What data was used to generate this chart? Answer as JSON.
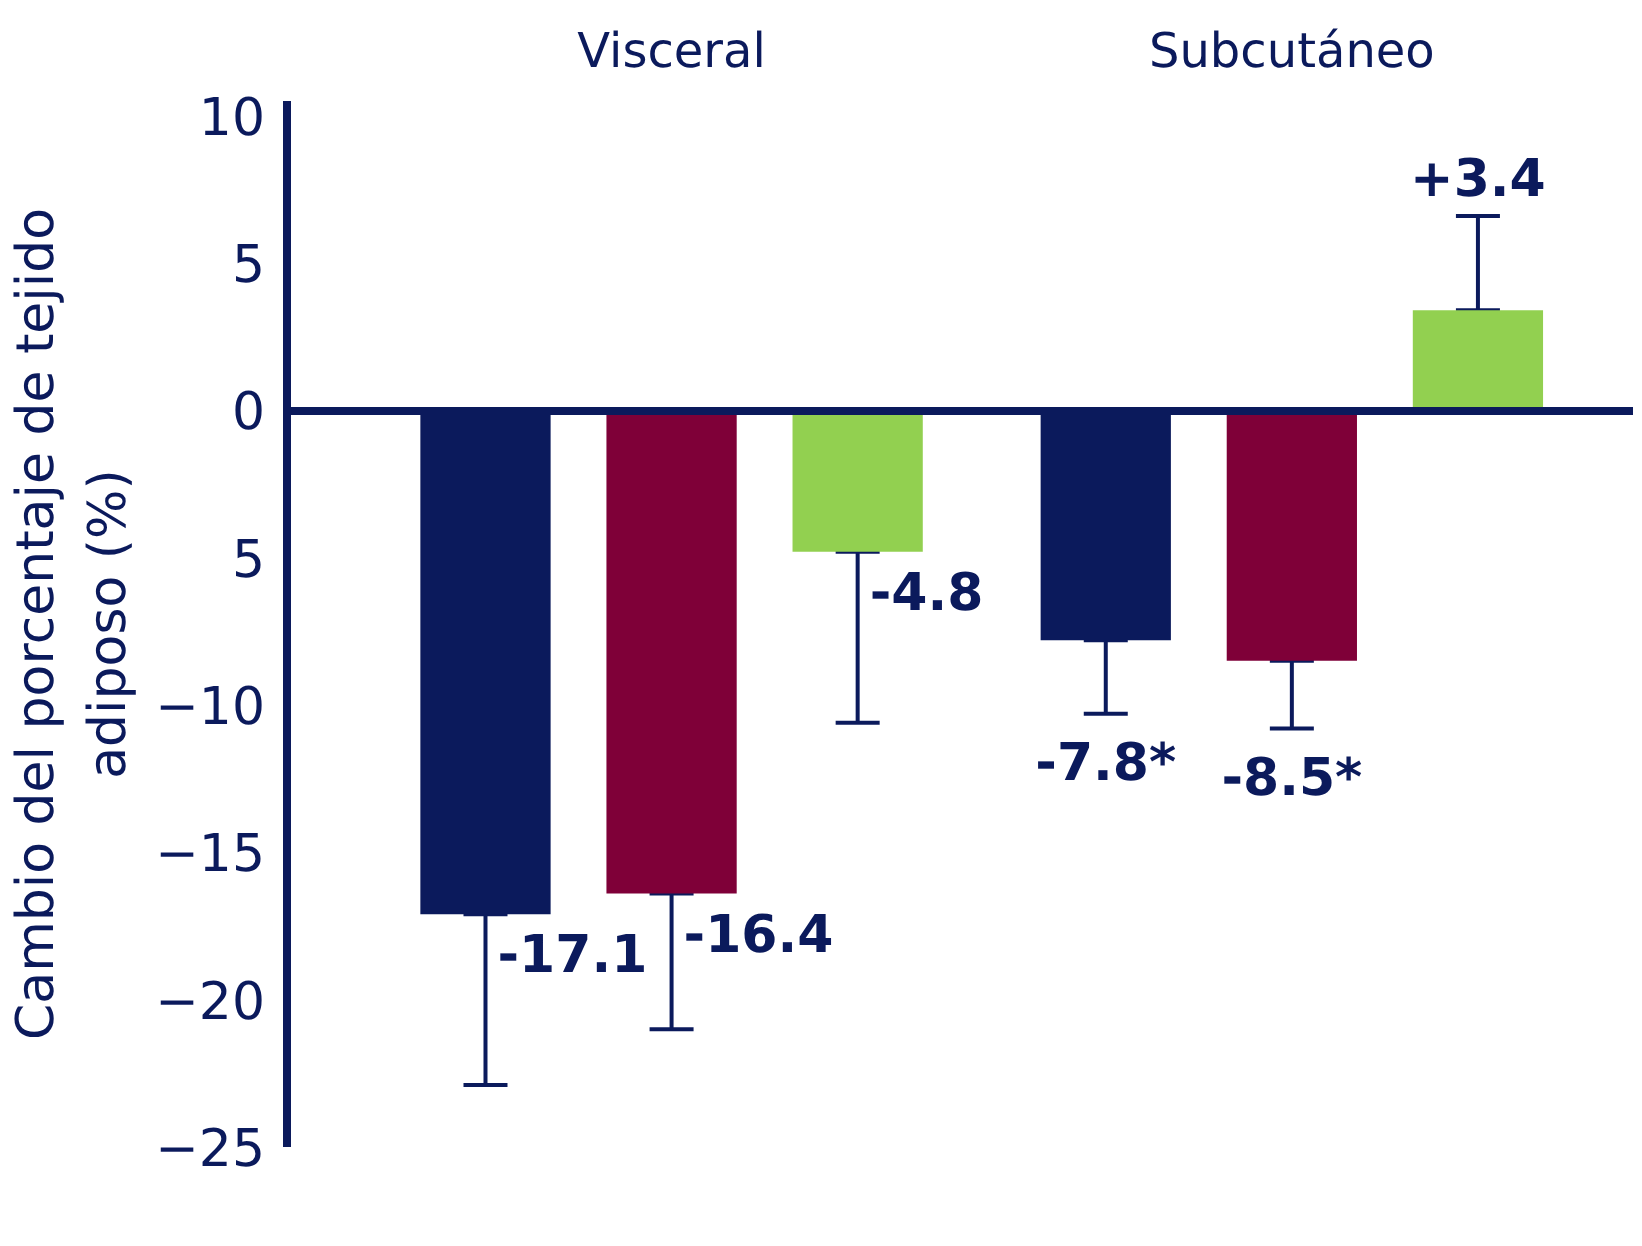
{
  "chart_data": {
    "type": "bar",
    "ylabel": "Cambio del porcentaje de tejido adiposo (%)",
    "categories": [
      "Visceral",
      "Subcutáneo"
    ],
    "series": [
      {
        "color": "#0b1a5c",
        "values": [
          -17.1,
          -7.8
        ],
        "errors": [
          [
            -22.9,
            -17.1
          ],
          [
            -10.3,
            -7.8
          ]
        ],
        "value_labels": [
          "-17.1",
          "-7.8*"
        ]
      },
      {
        "color": "#7f0038",
        "values": [
          -16.4,
          -8.5
        ],
        "errors": [
          [
            -21.0,
            -16.4
          ],
          [
            -10.8,
            -8.5
          ]
        ],
        "value_labels": [
          "-16.4",
          "-8.5*"
        ]
      },
      {
        "color": "#92d050",
        "values": [
          -4.8,
          3.4
        ],
        "errors": [
          [
            -10.6,
            -4.8
          ],
          [
            3.4,
            6.6
          ]
        ],
        "value_labels": [
          "-4.8",
          "+3.4"
        ]
      }
    ],
    "ylim": [
      -25,
      10.5
    ],
    "yticks": [
      -25,
      -20,
      -15,
      -10,
      {
        "value": -5,
        "label": "5"
      },
      0,
      5,
      10
    ],
    "grid": false
  }
}
